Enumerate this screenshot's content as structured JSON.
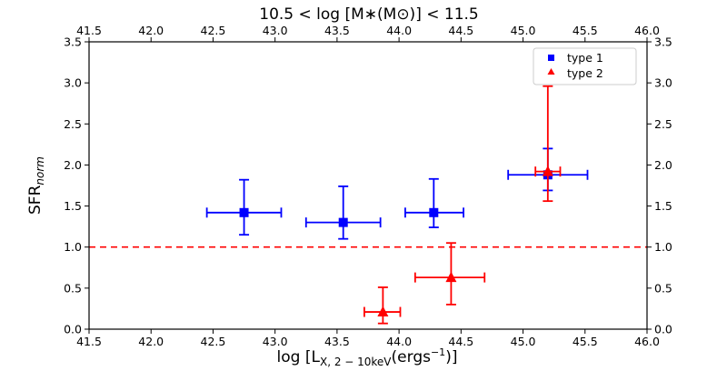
{
  "chart_data": {
    "type": "scatter",
    "title": "10.5 < log [M∗(M⊙)] < 11.5",
    "xlabel": "log [L",
    "xlabel_sub": "X, 2 − 10keV",
    "xlabel_tail": "(ergs",
    "xlabel_sup": "−1",
    "xlabel_close": ")]",
    "ylabel": "SFR",
    "ylabel_sub": "norm",
    "xlim": [
      41.5,
      46.0
    ],
    "ylim": [
      0.0,
      3.5
    ],
    "x_ticks": [
      "41.5",
      "42.0",
      "42.5",
      "43.0",
      "43.5",
      "44.0",
      "44.5",
      "45.0",
      "45.5",
      "46.0"
    ],
    "y_ticks": [
      "0.0",
      "0.5",
      "1.0",
      "1.5",
      "2.0",
      "2.5",
      "3.0",
      "3.5"
    ],
    "reference_line": {
      "y": 1.0,
      "style": "dashed",
      "color": "#ff0000"
    },
    "legend": {
      "placement": "top-right"
    },
    "series": [
      {
        "name": "type 1",
        "marker": "square",
        "color": "#0000ff",
        "points": [
          {
            "x": 42.75,
            "y": 1.42,
            "xlo": 42.45,
            "xhi": 43.05,
            "ylo": 1.15,
            "yhi": 1.82
          },
          {
            "x": 43.55,
            "y": 1.3,
            "xlo": 43.25,
            "xhi": 43.85,
            "ylo": 1.1,
            "yhi": 1.74
          },
          {
            "x": 44.28,
            "y": 1.42,
            "xlo": 44.05,
            "xhi": 44.52,
            "ylo": 1.24,
            "yhi": 1.83
          },
          {
            "x": 45.2,
            "y": 1.88,
            "xlo": 44.88,
            "xhi": 45.52,
            "ylo": 1.69,
            "yhi": 2.2
          }
        ]
      },
      {
        "name": "type 2",
        "marker": "triangle",
        "color": "#ff0000",
        "points": [
          {
            "x": 43.87,
            "y": 0.21,
            "xlo": 43.72,
            "xhi": 44.01,
            "ylo": 0.07,
            "yhi": 0.51
          },
          {
            "x": 44.42,
            "y": 0.63,
            "xlo": 44.13,
            "xhi": 44.69,
            "ylo": 0.3,
            "yhi": 1.05
          },
          {
            "x": 45.2,
            "y": 1.92,
            "xlo": 45.1,
            "xhi": 45.3,
            "ylo": 1.56,
            "yhi": 2.96
          }
        ]
      }
    ]
  }
}
